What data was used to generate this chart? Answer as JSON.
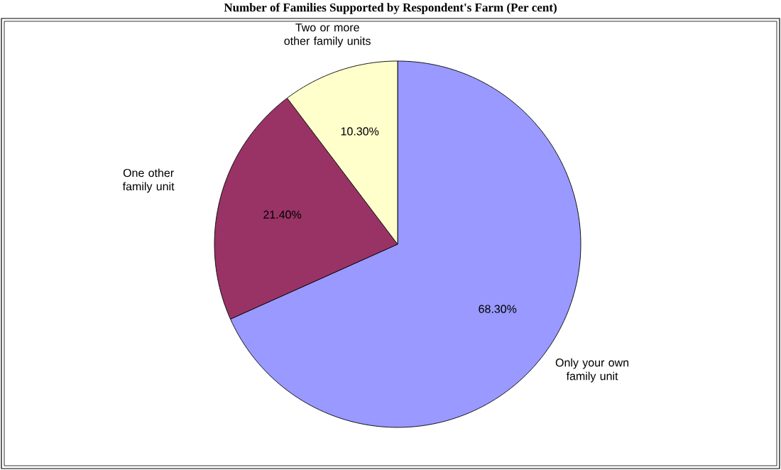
{
  "chart_data": {
    "type": "pie",
    "title": "Number of Families Supported by Respondent's Farm (Per cent)",
    "categories": [
      "Only your own family unit",
      "One other family unit",
      "Two or more other family units"
    ],
    "values": [
      68.3,
      21.4,
      10.3
    ],
    "colors": [
      "#9999ff",
      "#993366",
      "#ffffcc"
    ],
    "value_labels": [
      "68.30%",
      "21.40%",
      "10.30%"
    ]
  }
}
